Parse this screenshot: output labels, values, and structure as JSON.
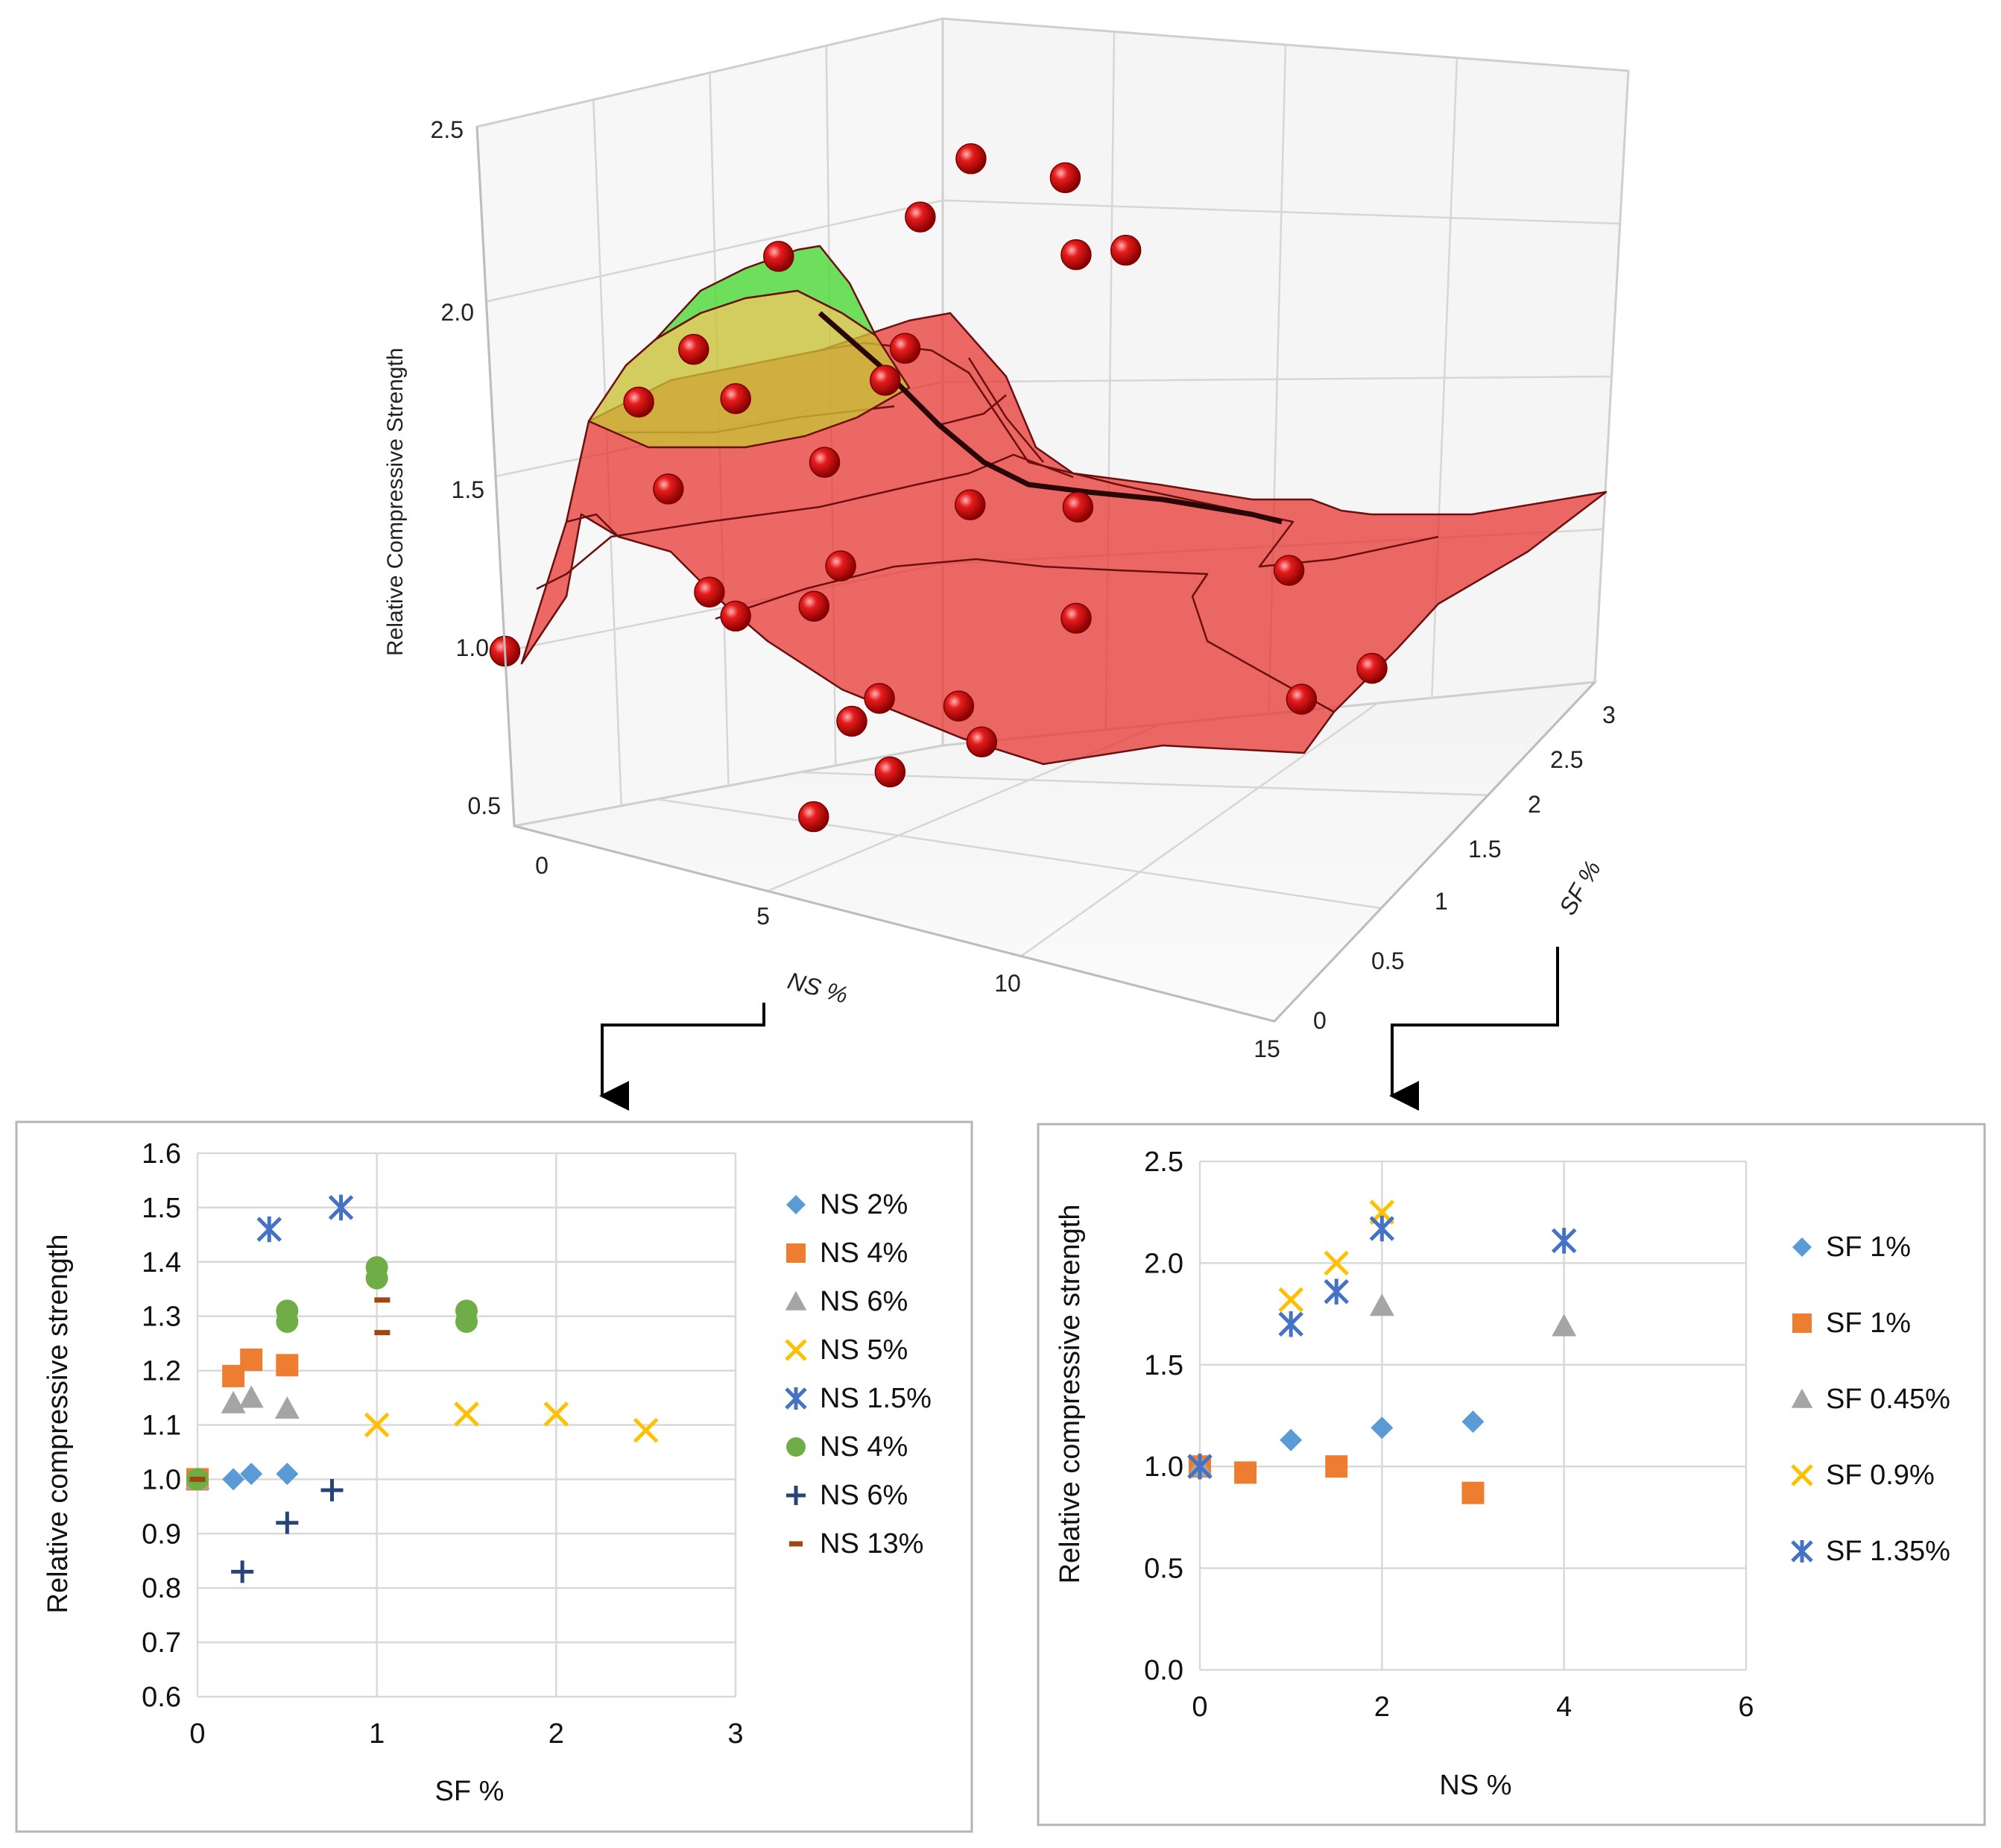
{
  "colors": {
    "surface_red": "#e8302c",
    "surface_green": "#4fd93a",
    "surface_yellow": "#c9c236",
    "point_red": "#d90f0f",
    "grid": "#d4d4d4",
    "wall": "#f4f4f4",
    "ns2": "#5b9bd5",
    "ns4": "#ed7d31",
    "ns6": "#a5a5a5",
    "ns5": "#ffc000",
    "ns15": "#4472c4",
    "ns4b": "#70ad47",
    "ns6b": "#264478",
    "ns13": "#9e480e"
  },
  "chart_data": [
    {
      "type": "scatter3d-surface",
      "zlabel": "Relative Compressive Strength",
      "xlabel": "NS %",
      "ylabel": "SF %",
      "x_ticks": [
        "0",
        "5",
        "10",
        "15"
      ],
      "y_ticks": [
        "0",
        "0.5",
        "1",
        "1.5",
        "2",
        "2.5",
        "3"
      ],
      "z_ticks": [
        "0.5",
        "1.0",
        "1.5",
        "2.0",
        "2.5"
      ],
      "xlim": [
        0,
        15
      ],
      "ylim": [
        0,
        3
      ],
      "zlim": [
        0.5,
        2.5
      ],
      "points": [
        {
          "ns": 0,
          "sf": 0,
          "z": 1.0
        },
        {
          "ns": 1.5,
          "sf": 0.5,
          "z": 1.73
        },
        {
          "ns": 1.5,
          "sf": 0.9,
          "z": 1.85
        },
        {
          "ns": 2,
          "sf": 1.35,
          "z": 2.1
        },
        {
          "ns": 2,
          "sf": 0.5,
          "z": 1.5
        },
        {
          "ns": 2,
          "sf": 1.0,
          "z": 1.72
        },
        {
          "ns": 3,
          "sf": 2.0,
          "z": 2.2
        },
        {
          "ns": 3.5,
          "sf": 2.2,
          "z": 2.37
        },
        {
          "ns": 4.5,
          "sf": 2.5,
          "z": 2.33
        },
        {
          "ns": 4,
          "sf": 1.5,
          "z": 1.9
        },
        {
          "ns": 4,
          "sf": 0.9,
          "z": 1.62
        },
        {
          "ns": 4,
          "sf": 1.35,
          "z": 1.82
        },
        {
          "ns": 3,
          "sf": 0.4,
          "z": 1.25
        },
        {
          "ns": 3.5,
          "sf": 0.4,
          "z": 1.2
        },
        {
          "ns": 4.5,
          "sf": 0.8,
          "z": 1.35
        },
        {
          "ns": 4.5,
          "sf": 0.6,
          "z": 1.25
        },
        {
          "ns": 6,
          "sf": 1.2,
          "z": 1.55
        },
        {
          "ns": 7,
          "sf": 1.6,
          "z": 1.55
        },
        {
          "ns": 6,
          "sf": 0.3,
          "z": 1.0
        },
        {
          "ns": 6,
          "sf": 0.5,
          "z": 1.05
        },
        {
          "ns": 7,
          "sf": 0.7,
          "z": 1.05
        },
        {
          "ns": 8,
          "sf": 1.2,
          "z": 1.3
        },
        {
          "ns": 10,
          "sf": 2.0,
          "z": 1.45
        },
        {
          "ns": 8,
          "sf": 0.5,
          "z": 1.0
        },
        {
          "ns": 7,
          "sf": 0.2,
          "z": 0.9
        },
        {
          "ns": 6,
          "sf": 0,
          "z": 0.75
        },
        {
          "ns": 6.5,
          "sf": 2.2,
          "z": 2.22
        },
        {
          "ns": 5.5,
          "sf": 2.2,
          "z": 2.17
        },
        {
          "ns": 13,
          "sf": 1.5,
          "z": 1.32
        },
        {
          "ns": 13,
          "sf": 1.0,
          "z": 1.27
        }
      ]
    },
    {
      "type": "scatter",
      "xlabel": "SF %",
      "ylabel": "Relative compressive strength",
      "xlim": [
        0,
        3
      ],
      "ylim": [
        0.6,
        1.6
      ],
      "x_ticks": [
        "0",
        "1",
        "2",
        "3"
      ],
      "y_ticks": [
        "0.6",
        "0.7",
        "0.8",
        "0.9",
        "1.0",
        "1.1",
        "1.2",
        "1.3",
        "1.4",
        "1.5",
        "1.6"
      ],
      "legend_position": "right",
      "series": [
        {
          "name": "NS 2%",
          "marker": "diamond",
          "color": "#5b9bd5",
          "points": [
            [
              0,
              1.0
            ],
            [
              0.2,
              1.0
            ],
            [
              0.3,
              1.01
            ],
            [
              0.5,
              1.01
            ]
          ]
        },
        {
          "name": "NS 4%",
          "marker": "square",
          "color": "#ed7d31",
          "points": [
            [
              0,
              1.0
            ],
            [
              0.2,
              1.19
            ],
            [
              0.3,
              1.22
            ],
            [
              0.5,
              1.21
            ]
          ]
        },
        {
          "name": "NS 6%",
          "marker": "triangle",
          "color": "#a5a5a5",
          "points": [
            [
              0,
              1.0
            ],
            [
              0.2,
              1.14
            ],
            [
              0.3,
              1.15
            ],
            [
              0.5,
              1.13
            ]
          ]
        },
        {
          "name": "NS 5%",
          "marker": "x",
          "color": "#ffc000",
          "points": [
            [
              1,
              1.1
            ],
            [
              1.5,
              1.12
            ],
            [
              2,
              1.12
            ],
            [
              2.5,
              1.09
            ]
          ]
        },
        {
          "name": "NS 1.5%",
          "marker": "star",
          "color": "#4472c4",
          "points": [
            [
              0.4,
              1.46
            ],
            [
              0.8,
              1.5
            ]
          ]
        },
        {
          "name": "NS 4%",
          "marker": "circle",
          "color": "#70ad47",
          "points": [
            [
              0,
              1.0
            ],
            [
              0.5,
              1.29
            ],
            [
              0.5,
              1.31
            ],
            [
              1.0,
              1.37
            ],
            [
              1.0,
              1.39
            ],
            [
              1.5,
              1.29
            ],
            [
              1.5,
              1.31
            ]
          ]
        },
        {
          "name": "NS 6%",
          "marker": "plus",
          "color": "#264478",
          "points": [
            [
              0.25,
              0.83
            ],
            [
              0.5,
              0.92
            ],
            [
              0.75,
              0.98
            ]
          ]
        },
        {
          "name": "NS 13%",
          "marker": "dash",
          "color": "#9e480e",
          "points": [
            [
              0,
              1.0
            ],
            [
              1.03,
              1.27
            ],
            [
              1.03,
              1.33
            ]
          ]
        }
      ]
    },
    {
      "type": "scatter",
      "xlabel": "NS %",
      "ylabel": "Relative compressive strength",
      "xlim": [
        0,
        6
      ],
      "ylim": [
        0,
        2.5
      ],
      "x_ticks": [
        "0",
        "2",
        "4",
        "6"
      ],
      "y_ticks": [
        "0.0",
        "0.5",
        "1.0",
        "1.5",
        "2.0",
        "2.5"
      ],
      "legend_position": "right",
      "series": [
        {
          "name": "SF 1%",
          "marker": "diamond",
          "color": "#5b9bd5",
          "points": [
            [
              0,
              1.0
            ],
            [
              1,
              1.13
            ],
            [
              2,
              1.19
            ],
            [
              3,
              1.22
            ]
          ]
        },
        {
          "name": "SF 1%",
          "marker": "square",
          "color": "#ed7d31",
          "points": [
            [
              0,
              1.0
            ],
            [
              0.5,
              0.97
            ],
            [
              1.5,
              1.0
            ],
            [
              3,
              0.87
            ]
          ]
        },
        {
          "name": "SF 0.45%",
          "marker": "triangle",
          "color": "#a5a5a5",
          "points": [
            [
              0,
              1.0
            ],
            [
              2,
              1.79
            ],
            [
              4,
              1.69
            ]
          ]
        },
        {
          "name": "SF 0.9%",
          "marker": "x",
          "color": "#ffc000",
          "points": [
            [
              0,
              1.0
            ],
            [
              1,
              1.82
            ],
            [
              1.5,
              2.0
            ],
            [
              2,
              2.25
            ]
          ]
        },
        {
          "name": "SF 1.35%",
          "marker": "star",
          "color": "#4472c4",
          "points": [
            [
              0,
              1.0
            ],
            [
              1,
              1.7
            ],
            [
              1.5,
              1.86
            ],
            [
              2,
              2.17
            ],
            [
              4,
              2.11
            ]
          ]
        }
      ]
    }
  ]
}
